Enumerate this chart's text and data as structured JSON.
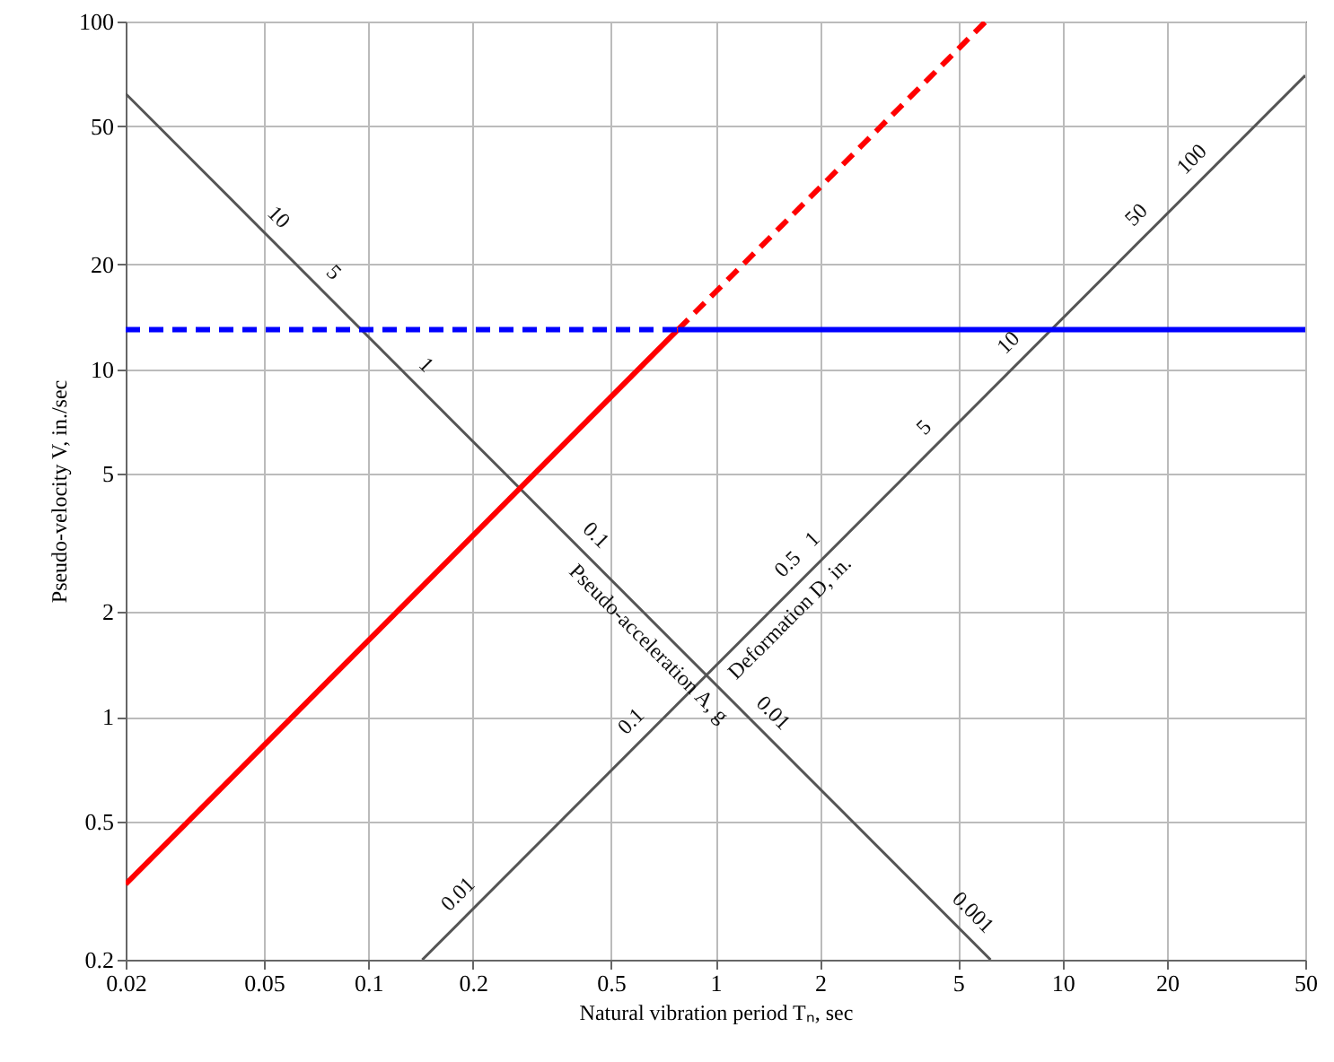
{
  "chart_data": {
    "type": "line",
    "log": "xy",
    "grid": true,
    "xlabel": "Natural vibration period Tₙ, sec",
    "ylabel": "Pseudo-velocity V, in./sec",
    "xlim": [
      0.02,
      50
    ],
    "xticks": [
      0.02,
      0.05,
      0.1,
      0.2,
      0.5,
      1,
      2,
      5,
      10,
      20,
      50
    ],
    "ylim": [
      0.2,
      100
    ],
    "yticks": [
      0.2,
      0.5,
      1,
      2,
      5,
      10,
      20,
      50,
      100
    ],
    "series": [
      {
        "color": "#555555",
        "x": [
          0.02,
          6.2
        ],
        "values": [
          62,
          0.2
        ]
      },
      {
        "color": "#555555",
        "x": [
          0.143,
          50
        ],
        "values": [
          0.2,
          70
        ]
      },
      {
        "color": "#ff0000",
        "x": [
          0.02,
          0.78
        ],
        "values": [
          0.33,
          13
        ]
      },
      {
        "color": "#ff0000",
        "x": [
          0.78,
          6.0
        ],
        "values": [
          13,
          100
        ],
        "line_style": "dashed"
      },
      {
        "color": "#0000ff",
        "x": [
          0.02,
          0.78
        ],
        "values": [
          13,
          13
        ],
        "line_style": "dashed"
      },
      {
        "color": "#0000ff",
        "x": [
          0.78,
          50
        ],
        "values": [
          13,
          13
        ]
      }
    ],
    "annotations": [
      {
        "text": "10",
        "x": 0.05,
        "y": 24.8
      },
      {
        "text": "5",
        "x": 0.072,
        "y": 17.2
      },
      {
        "text": "1",
        "x": 0.133,
        "y": 9.32
      },
      {
        "text": "0.1",
        "x": 0.41,
        "y": 3.02
      },
      {
        "text": "0.01",
        "x": 1.33,
        "y": 0.93
      },
      {
        "text": "0.001",
        "x": 5.0,
        "y": 0.248
      },
      {
        "text": "Pseudo-acceleration A, g",
        "x": 0.7,
        "y": 1.77
      },
      {
        "text": "0.01",
        "x": 0.2,
        "y": 0.28
      },
      {
        "text": "0.1",
        "x": 0.63,
        "y": 0.88
      },
      {
        "text": "0.5",
        "x": 1.78,
        "y": 2.49
      },
      {
        "text": "1",
        "x": 2.1,
        "y": 2.94
      },
      {
        "text": "5",
        "x": 4.4,
        "y": 6.16
      },
      {
        "text": "10",
        "x": 7.7,
        "y": 10.8
      },
      {
        "text": "50",
        "x": 18,
        "y": 25.2
      },
      {
        "text": "100",
        "x": 26,
        "y": 36.4
      },
      {
        "text": "Deformation D, in.",
        "x": 1.5,
        "y": 2.1
      }
    ]
  }
}
